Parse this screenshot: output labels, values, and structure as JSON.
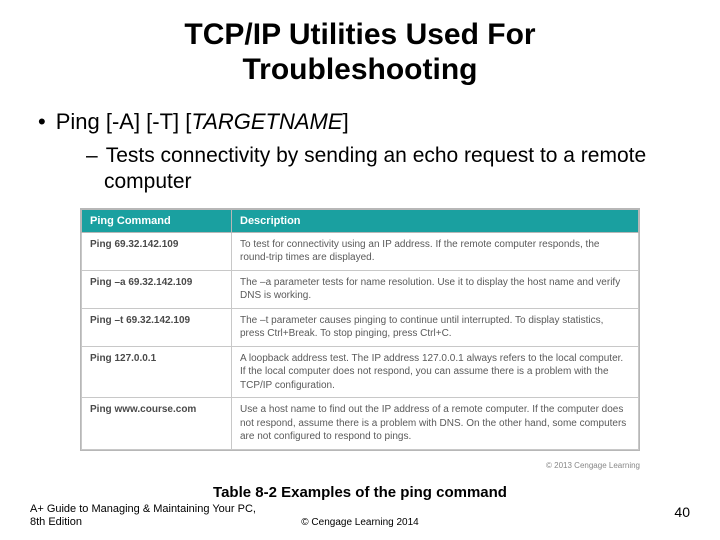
{
  "title_line1": "TCP/IP Utilities Used For",
  "title_line2": "Troubleshooting",
  "bullet1_prefix": "Ping [-A] [-T] [",
  "bullet1_italic": "TARGETNAME",
  "bullet1_suffix": "]",
  "bullet2": "Tests connectivity by sending an echo request to a remote computer",
  "table": {
    "header_col1": "Ping Command",
    "header_col2": "Description",
    "rows": [
      {
        "cmd": "Ping 69.32.142.109",
        "desc": "To test for connectivity using an IP address. If the remote computer responds, the round-trip times are displayed."
      },
      {
        "cmd": "Ping –a 69.32.142.109",
        "desc": "The –a parameter tests for name resolution. Use it to display the host name and verify DNS is working."
      },
      {
        "cmd": "Ping –t 69.32.142.109",
        "desc": "The –t parameter causes pinging to continue until interrupted. To display statistics, press Ctrl+Break. To stop pinging, press Ctrl+C."
      },
      {
        "cmd": "Ping 127.0.0.1",
        "desc": "A loopback address test. The IP address 127.0.0.1 always refers to the local computer. If the local computer does not respond, you can assume there is a problem with the TCP/IP configuration."
      },
      {
        "cmd": "Ping www.course.com",
        "desc": "Use a host name to find out the IP address of a remote computer. If the computer does not respond, assume there is a problem with DNS. On the other hand, some computers are not configured to respond to pings."
      }
    ],
    "copyright": "© 2013 Cengage Learning"
  },
  "caption": "Table 8-2  Examples of the ping command",
  "footer": {
    "book": "A+ Guide to Managing & Maintaining Your PC, 8th Edition",
    "copyright": "© Cengage Learning 2014",
    "page": "40"
  },
  "colors": {
    "table_header_bg": "#1aa0a0",
    "table_border": "#c8c8c8"
  }
}
